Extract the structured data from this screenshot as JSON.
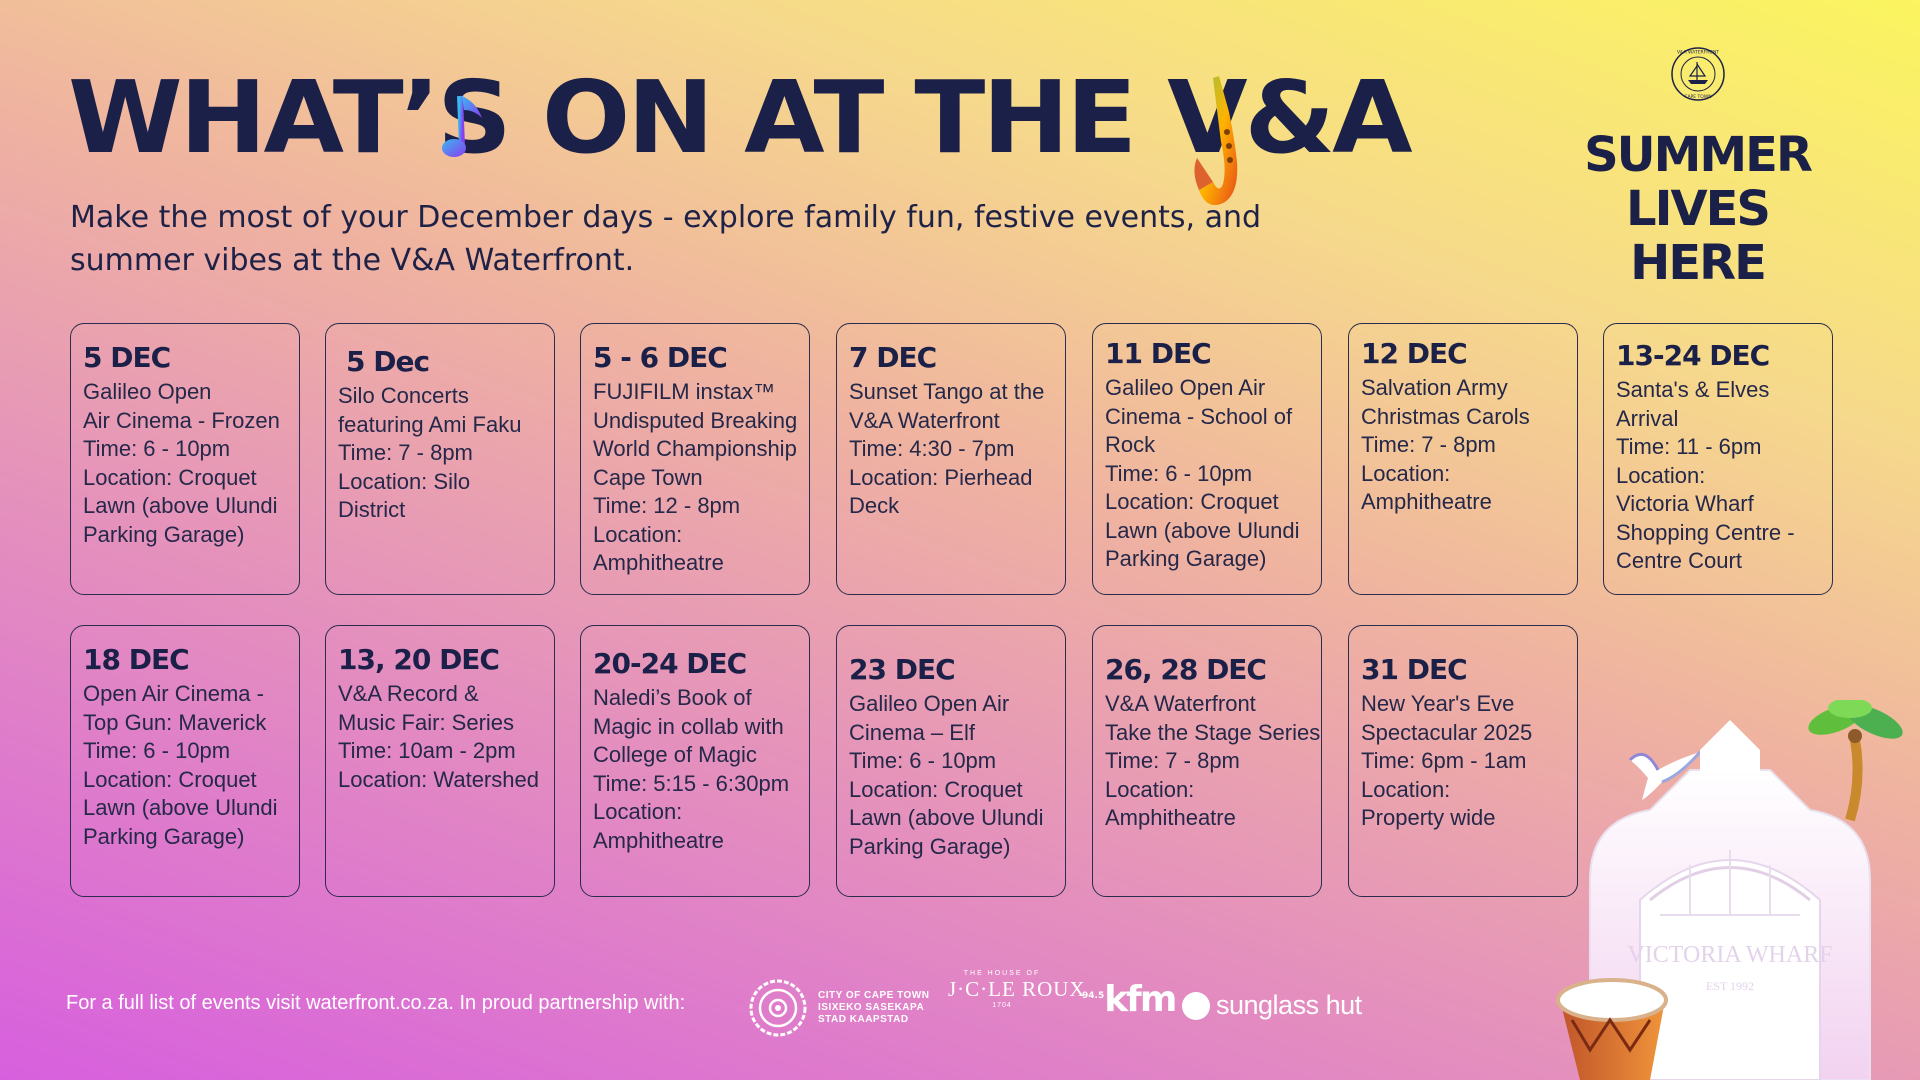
{
  "header": {
    "title": "WHAT’S ON AT THE V&A",
    "subtitle": "Make the most of your December days - explore family fun, festive events, and summer vibes at the V&A Waterfront.",
    "brand_tagline": "SUMMER LIVES HERE",
    "seal_text": "V&A WATERFRONT · CAPE TOWN"
  },
  "events": [
    {
      "date": "5 DEC",
      "lines": [
        "Galileo Open",
        "Air Cinema - Frozen",
        "Time: 6 - 10pm",
        "Location: Croquet",
        "Lawn (above Ulundi",
        "Parking Garage)"
      ]
    },
    {
      "date": "5 Dec",
      "lines": [
        "Silo Concerts",
        "featuring Ami Faku",
        "Time: 7 - 8pm",
        "Location: Silo",
        "District"
      ]
    },
    {
      "date": "5 - 6 DEC",
      "lines": [
        "FUJIFILM instax™",
        "Undisputed Breaking",
        "World Championship",
        "Cape Town",
        "Time: 12 - 8pm",
        "Location:",
        "Amphitheatre"
      ]
    },
    {
      "date": "7 DEC",
      "lines": [
        "Sunset Tango at the",
        "V&A Waterfront",
        "Time: 4:30 - 7pm",
        "Location: Pierhead",
        "Deck"
      ]
    },
    {
      "date": "11 DEC",
      "lines": [
        "Galileo Open Air",
        "Cinema - School of",
        "Rock",
        "Time: 6 - 10pm",
        "Location: Croquet",
        "Lawn (above Ulundi",
        "Parking Garage)"
      ]
    },
    {
      "date": "12 DEC",
      "lines": [
        "Salvation Army",
        "Christmas Carols",
        "Time: 7 - 8pm",
        "Location:",
        "Amphitheatre"
      ]
    },
    {
      "date": "13-24 DEC",
      "lines": [
        "Santa's & Elves",
        "Arrival",
        "Time: 11 - 6pm",
        "Location:",
        "Victoria Wharf",
        "Shopping Centre -",
        "Centre Court"
      ]
    },
    {
      "date": "18 DEC",
      "lines": [
        "Open Air Cinema -",
        "Top Gun: Maverick",
        "Time: 6 - 10pm",
        "Location: Croquet",
        "Lawn (above Ulundi",
        "Parking Garage)"
      ]
    },
    {
      "date": "13, 20 DEC",
      "lines": [
        "V&A Record &",
        "Music Fair: Series",
        "Time: 10am - 2pm",
        "Location: Watershed"
      ]
    },
    {
      "date": "20-24 DEC",
      "lines": [
        "Naledi’s Book of",
        "Magic in collab with",
        "College of Magic",
        "Time: 5:15 - 6:30pm",
        "Location:",
        "Amphitheatre"
      ]
    },
    {
      "date": "23 DEC",
      "lines": [
        "Galileo Open Air",
        "Cinema – Elf",
        "Time: 6 - 10pm",
        "Location: Croquet",
        "Lawn (above Ulundi",
        "Parking Garage)"
      ]
    },
    {
      "date": "26, 28 DEC",
      "lines": [
        "V&A Waterfront",
        "Take the Stage Series",
        "Time: 7 - 8pm",
        "Location:",
        "Amphitheatre"
      ]
    },
    {
      "date": "31 DEC",
      "lines": [
        "New Year's Eve",
        "Spectacular 2025",
        "Time: 6pm - 1am",
        "Location:",
        "Property wide"
      ]
    }
  ],
  "footer": {
    "text": "For a full list of events visit waterfront.co.za.  In proud partnership with:",
    "partners": {
      "cape_town": [
        "CITY OF CAPE TOWN",
        "ISIXEKO SASEKAPA",
        "STAD KAAPSTAD"
      ],
      "jc_le_roux": {
        "top": "THE HOUSE OF",
        "name": "J·C·LE ROUX",
        "est": "1704"
      },
      "kfm": {
        "name": "kfm",
        "freq": "94.5"
      },
      "sunglass_hut": "sunglass hut"
    }
  },
  "illustration": {
    "building_name": "VICTORIA WHARF",
    "building_est": "EST 1992"
  },
  "colors": {
    "navy": "#1b2048",
    "gradient_top": "#fbf55f",
    "gradient_bottom": "#d75fde"
  },
  "icons": [
    "music-note-icon",
    "saxophone-icon",
    "seal-icon",
    "seagull-icon",
    "palm-tree-icon",
    "drum-icon",
    "cape-town-emblem-icon"
  ]
}
